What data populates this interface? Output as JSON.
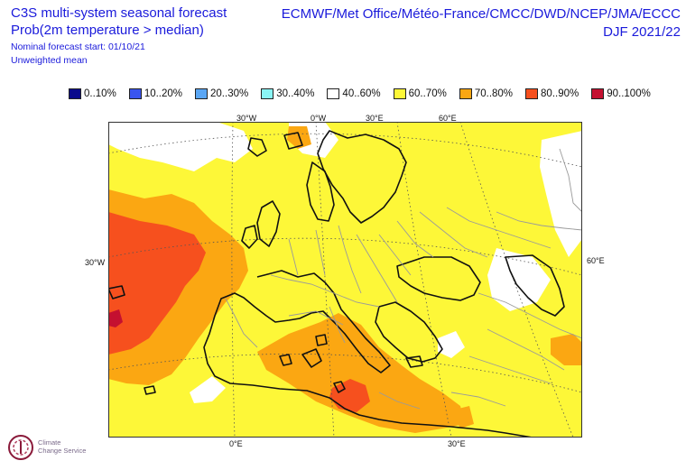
{
  "header": {
    "title_line1": "C3S multi-system seasonal forecast",
    "title_line2": "Prob(2m temperature > median)",
    "nominal_start": "Nominal forecast start: 01/10/21",
    "mean_type": "Unweighted mean",
    "centres": "ECMWF/Met Office/Météo-France/CMCC/DWD/NCEP/JMA/ECCC",
    "season": "DJF 2021/22"
  },
  "legend": {
    "items": [
      {
        "label": "0..10%",
        "color": "#0a0a8c"
      },
      {
        "label": "10..20%",
        "color": "#3a55f0"
      },
      {
        "label": "20..30%",
        "color": "#5aa6f4"
      },
      {
        "label": "30..40%",
        "color": "#8af5f5"
      },
      {
        "label": "40..60%",
        "color": "#ffffff"
      },
      {
        "label": "60..70%",
        "color": "#fdf738"
      },
      {
        "label": "70..80%",
        "color": "#fba712"
      },
      {
        "label": "80..90%",
        "color": "#f6501e"
      },
      {
        "label": "90..100%",
        "color": "#c41030"
      }
    ]
  },
  "axes": {
    "top": [
      "30°W",
      "0°W",
      "30°E",
      "60°E"
    ],
    "left": "30°W",
    "right": "60°E",
    "bottom": [
      "0°E",
      "30°E"
    ]
  },
  "colors": {
    "text_accent": "#1a1adb",
    "yellow": "#fdf738",
    "orange": "#fba712",
    "red_orange": "#f6501e",
    "crimson": "#c41030",
    "white": "#ffffff",
    "grid": "#555555"
  },
  "logo": {
    "name_line1": "Climate",
    "name_line2": "Change Service"
  }
}
